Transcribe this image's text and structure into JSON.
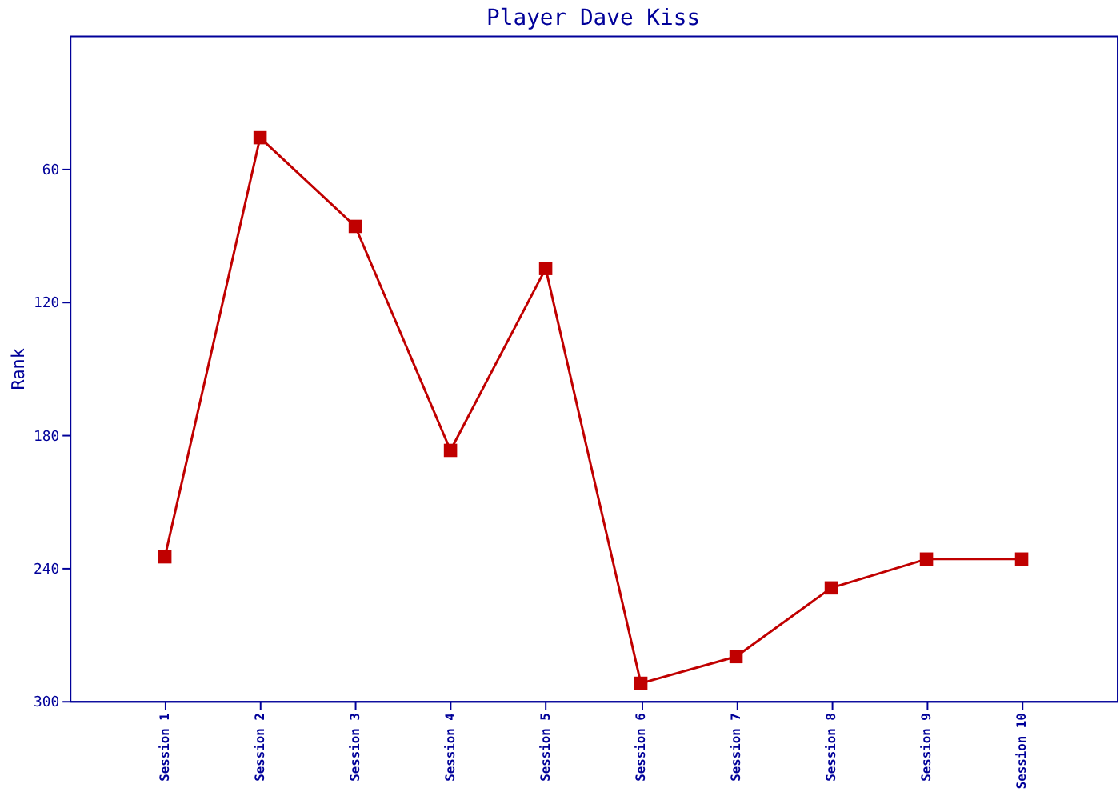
{
  "chart_data": {
    "type": "line",
    "title": "Player Dave Kiss",
    "ylabel": "Rank",
    "categories": [
      "Session 1",
      "Session 2",
      "Session 3",
      "Session 4",
      "Session 5",
      "Session 6",
      "Session 7",
      "Session 8",
      "Session 9",
      "Session 10"
    ],
    "series": [
      {
        "color": "#c00000",
        "values": [
          235,
          46,
          86,
          187,
          105,
          292,
          280,
          249,
          236,
          236
        ]
      }
    ],
    "ylim": [
      300,
      0
    ],
    "yticks": [
      60,
      120,
      180,
      240,
      300
    ],
    "grid": false,
    "legend": false,
    "marker": "square",
    "line_style": "solid"
  }
}
